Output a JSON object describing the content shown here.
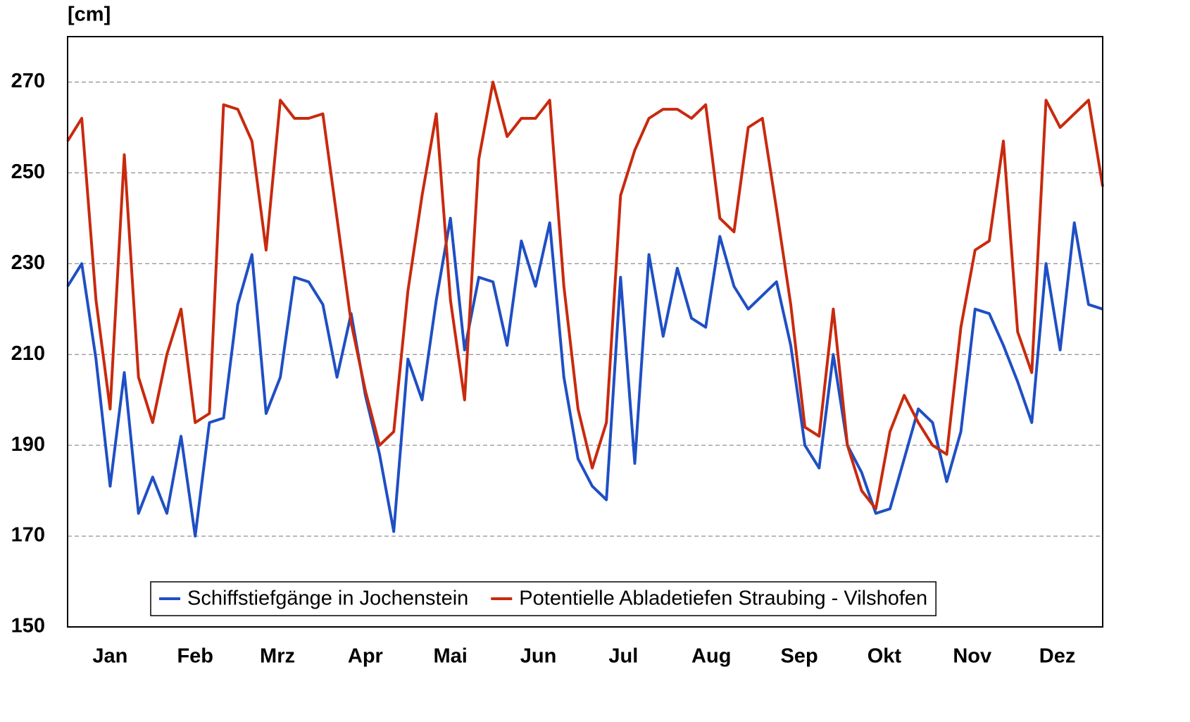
{
  "chart_data": {
    "type": "line",
    "title": "[cm]",
    "x": [
      0,
      5,
      10,
      15,
      20,
      25,
      30,
      35,
      40,
      45,
      50,
      55,
      60,
      65,
      70,
      75,
      80,
      85,
      90,
      95,
      100,
      105,
      110,
      115,
      120,
      125,
      130,
      135,
      140,
      145,
      150,
      155,
      160,
      165,
      170,
      175,
      180,
      185,
      190,
      195,
      200,
      205,
      210,
      215,
      220,
      225,
      230,
      235,
      240,
      245,
      250,
      255,
      260,
      265,
      270,
      275,
      280,
      285,
      290,
      295,
      300,
      305,
      310,
      315,
      320,
      325,
      330,
      335,
      340,
      345,
      350,
      355,
      360,
      365
    ],
    "xlim": [
      0,
      365
    ],
    "xticks": [
      {
        "value": 15,
        "label": "Jan"
      },
      {
        "value": 45,
        "label": "Feb"
      },
      {
        "value": 74,
        "label": "Mrz"
      },
      {
        "value": 105,
        "label": "Apr"
      },
      {
        "value": 135,
        "label": "Mai"
      },
      {
        "value": 166,
        "label": "Jun"
      },
      {
        "value": 196,
        "label": "Jul"
      },
      {
        "value": 227,
        "label": "Aug"
      },
      {
        "value": 258,
        "label": "Sep"
      },
      {
        "value": 288,
        "label": "Okt"
      },
      {
        "value": 319,
        "label": "Nov"
      },
      {
        "value": 349,
        "label": "Dez"
      }
    ],
    "ylim": [
      150,
      280
    ],
    "yticks": [
      150,
      170,
      190,
      210,
      230,
      250,
      270
    ],
    "grid": true,
    "legend": "bottom",
    "series": [
      {
        "name": "Schiffstiefgänge in Jochenstein",
        "color": "#1f4fc4",
        "values": [
          225,
          230,
          209,
          181,
          206,
          175,
          183,
          175,
          192,
          170,
          195,
          196,
          221,
          232,
          197,
          205,
          227,
          226,
          221,
          205,
          219,
          201,
          188,
          171,
          209,
          200,
          222,
          240,
          211,
          227,
          226,
          212,
          235,
          225,
          239,
          205,
          187,
          181,
          178,
          227,
          186,
          232,
          214,
          229,
          218,
          216,
          236,
          225,
          220,
          223,
          226,
          212,
          190,
          185,
          210,
          190,
          184,
          175,
          176,
          187,
          198,
          195,
          182,
          193,
          220,
          219,
          212,
          204,
          195,
          230,
          211,
          239,
          221,
          220
        ]
      },
      {
        "name": "Potentielle Abladetiefen Straubing - Vilshofen",
        "color": "#c82a0e",
        "values": [
          257,
          262,
          222,
          198,
          254,
          205,
          195,
          210,
          220,
          195,
          197,
          265,
          264,
          257,
          233,
          266,
          262,
          262,
          263,
          240,
          217,
          202,
          190,
          193,
          224,
          245,
          263,
          222,
          200,
          253,
          270,
          258,
          262,
          262,
          266,
          225,
          198,
          185,
          195,
          245,
          255,
          262,
          264,
          264,
          262,
          265,
          240,
          237,
          260,
          262,
          242,
          221,
          194,
          192,
          220,
          190,
          180,
          176,
          193,
          201,
          195,
          190,
          188,
          216,
          233,
          235,
          257,
          215,
          206,
          266,
          260,
          263,
          266,
          247
        ]
      }
    ]
  }
}
